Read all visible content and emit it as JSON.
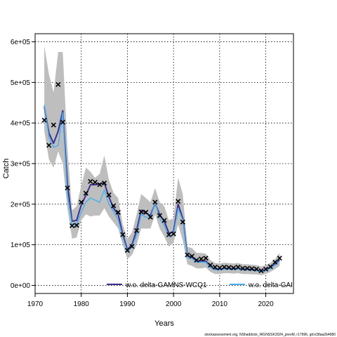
{
  "chart_data": {
    "type": "line",
    "xlabel": "Years",
    "ylabel": "Catch",
    "xlim": [
      1970,
      2026
    ],
    "ylim": [
      -20000,
      620000
    ],
    "x_ticks": [
      1970,
      1980,
      1990,
      2000,
      2010,
      2020
    ],
    "y_ticks": [
      0,
      100000,
      200000,
      300000,
      400000,
      500000,
      600000
    ],
    "y_tick_labels": [
      "0e+00",
      "1e+05",
      "2e+05",
      "3e+05",
      "4e+05",
      "5e+05",
      "6e+05"
    ],
    "grid": true,
    "legend_position": "bottom",
    "footer": "stockassessment.org, NShaddock_WGNSSK2024_prevM, r17996, git:e38aa2b4980",
    "years": [
      1972,
      1973,
      1974,
      1975,
      1976,
      1977,
      1978,
      1979,
      1980,
      1981,
      1982,
      1983,
      1984,
      1985,
      1986,
      1987,
      1988,
      1989,
      1990,
      1991,
      1992,
      1993,
      1994,
      1995,
      1996,
      1997,
      1998,
      1999,
      2000,
      2001,
      2002,
      2003,
      2004,
      2005,
      2006,
      2007,
      2008,
      2009,
      2010,
      2011,
      2012,
      2013,
      2014,
      2015,
      2016,
      2017,
      2018,
      2019,
      2020,
      2021,
      2022,
      2023
    ],
    "observed": {
      "marker": "x",
      "values": [
        407000,
        345000,
        395000,
        495000,
        402000,
        240000,
        147000,
        148000,
        205000,
        227000,
        256000,
        254000,
        248000,
        252000,
        223000,
        196000,
        180000,
        125000,
        86000,
        96000,
        135000,
        181000,
        180000,
        168000,
        205000,
        172000,
        160000,
        125000,
        127000,
        207000,
        156000,
        75000,
        72000,
        62000,
        65000,
        67000,
        50000,
        45000,
        43000,
        45000,
        44000,
        43000,
        45000,
        42000,
        42000,
        41000,
        40000,
        36000,
        40000,
        46000,
        57000,
        67000
      ]
    },
    "confidence_band": {
      "color": "#bebebe",
      "lower": [
        380000,
        310000,
        290000,
        330000,
        300000,
        190000,
        115000,
        118000,
        160000,
        175000,
        170000,
        172000,
        172000,
        190000,
        170000,
        155000,
        140000,
        100000,
        65000,
        75000,
        100000,
        140000,
        140000,
        140000,
        175000,
        140000,
        120000,
        95000,
        105000,
        150000,
        110000,
        52000,
        48000,
        42000,
        42000,
        44000,
        33000,
        28000,
        28000,
        30000,
        30000,
        29000,
        30000,
        28000,
        28000,
        27000,
        27000,
        25000,
        28000,
        33000,
        40000,
        48000
      ],
      "upper": [
        590000,
        520000,
        475000,
        575000,
        575000,
        340000,
        185000,
        195000,
        245000,
        290000,
        280000,
        265000,
        275000,
        320000,
        260000,
        228000,
        215000,
        150000,
        115000,
        130000,
        175000,
        225000,
        215000,
        205000,
        240000,
        205000,
        195000,
        160000,
        165000,
        265000,
        225000,
        95000,
        92000,
        80000,
        80000,
        78000,
        62000,
        55000,
        54000,
        56000,
        55000,
        54000,
        55000,
        52000,
        52000,
        51000,
        50000,
        46000,
        50000,
        55000,
        65000,
        80000
      ]
    },
    "series": [
      {
        "name": "w.o. delta-GAMNS-WCQ1",
        "color": "#3b2f8f",
        "values": [
          440000,
          375000,
          350000,
          380000,
          430000,
          250000,
          158000,
          160000,
          198000,
          222000,
          248000,
          248000,
          250000,
          252000,
          218000,
          190000,
          175000,
          125000,
          88000,
          100000,
          136000,
          185000,
          178000,
          172000,
          202000,
          174000,
          158000,
          128000,
          132000,
          200000,
          165000,
          73000,
          70000,
          60000,
          60000,
          60000,
          46000,
          40000,
          40000,
          42000,
          42000,
          41000,
          42000,
          40000,
          40000,
          39000,
          38000,
          35000,
          38000,
          44000,
          52000,
          63000
        ]
      },
      {
        "name": "w.o. delta-GAI",
        "color": "#4ab0f0",
        "values": [
          445000,
          365000,
          340000,
          345000,
          425000,
          225000,
          148000,
          150000,
          180000,
          205000,
          215000,
          210000,
          205000,
          235000,
          200000,
          182000,
          162000,
          118000,
          83000,
          95000,
          125000,
          175000,
          168000,
          165000,
          205000,
          165000,
          148000,
          120000,
          125000,
          190000,
          160000,
          68000,
          66000,
          57000,
          57000,
          57000,
          44000,
          38000,
          38000,
          40000,
          40000,
          39000,
          40000,
          38000,
          38000,
          37000,
          36000,
          34000,
          36000,
          42000,
          50000,
          60000
        ]
      }
    ]
  }
}
